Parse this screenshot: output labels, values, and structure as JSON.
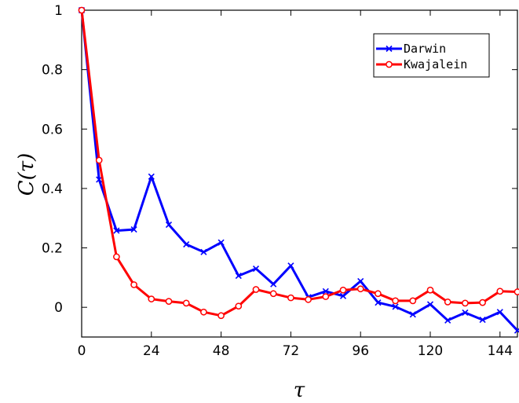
{
  "chart_data": {
    "type": "line",
    "xlabel": "τ",
    "ylabel": "C(τ)",
    "xlim": [
      0,
      150
    ],
    "ylim": [
      -0.1,
      1
    ],
    "xticks": [
      0,
      24,
      48,
      72,
      96,
      120,
      144
    ],
    "yticks": [
      0,
      0.2,
      0.4,
      0.6,
      0.8,
      1
    ],
    "ytick_labels": [
      "0",
      "0.2",
      "0.4",
      "0.6",
      "0.8",
      "1"
    ],
    "grid": false,
    "legend_position": "top-right",
    "series": [
      {
        "name": "Darwin",
        "color": "#0000ff",
        "marker": "x",
        "x": [
          0,
          6,
          12,
          18,
          24,
          30,
          36,
          42,
          48,
          54,
          60,
          66,
          72,
          78,
          84,
          90,
          96,
          102,
          108,
          114,
          120,
          126,
          132,
          138,
          144,
          150
        ],
        "y": [
          1.0,
          0.43,
          0.258,
          0.262,
          0.44,
          0.278,
          0.212,
          0.186,
          0.218,
          0.106,
          0.13,
          0.078,
          0.14,
          0.034,
          0.054,
          0.038,
          0.088,
          0.016,
          0.002,
          -0.024,
          0.01,
          -0.044,
          -0.018,
          -0.042,
          -0.016,
          -0.078
        ]
      },
      {
        "name": "Kwajalein",
        "color": "#ff0000",
        "marker": "o",
        "x": [
          0,
          6,
          12,
          18,
          24,
          30,
          36,
          42,
          48,
          54,
          60,
          66,
          72,
          78,
          84,
          90,
          96,
          102,
          108,
          114,
          120,
          126,
          132,
          138,
          144,
          150
        ],
        "y": [
          1.0,
          0.495,
          0.17,
          0.076,
          0.028,
          0.02,
          0.014,
          -0.016,
          -0.028,
          0.004,
          0.06,
          0.046,
          0.032,
          0.026,
          0.036,
          0.058,
          0.062,
          0.046,
          0.022,
          0.022,
          0.058,
          0.018,
          0.014,
          0.016,
          0.054,
          0.052
        ]
      }
    ]
  }
}
